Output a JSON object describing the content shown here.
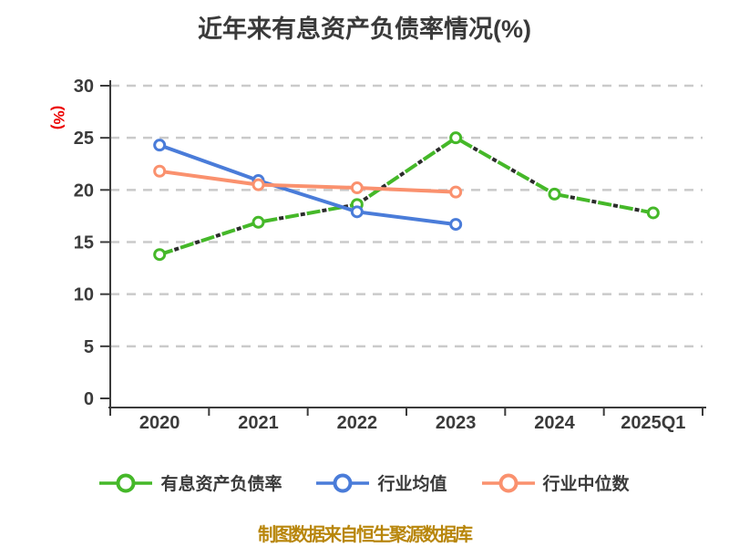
{
  "title": "近年来有息资产负债率情况(%)",
  "footer": "制图数据来自恒生聚源数据库",
  "colors": {
    "title": "#3a3a3a",
    "axis": "#3b3b3b",
    "grid": "#cacaca",
    "ylabel": "#ec0000",
    "footer": "#b8860b",
    "dash_underlay": "#2b2b2b",
    "marker_fill": "#ffffff"
  },
  "chart_data": {
    "type": "line",
    "title": "近年来有息资产负债率情况(%)",
    "categories": [
      "2020",
      "2021",
      "2022",
      "2023",
      "2024",
      "2025Q1"
    ],
    "series": [
      {
        "key": "interest-bearing-debt-ratio",
        "name": "有息资产负债率",
        "color": "#45b829",
        "style": "dashed",
        "values": [
          13.8,
          16.9,
          18.6,
          25.0,
          19.6,
          17.8
        ]
      },
      {
        "key": "industry-mean",
        "name": "行业均值",
        "color": "#4a7cd9",
        "style": "solid",
        "values": [
          24.3,
          20.9,
          17.9,
          16.7,
          null,
          null
        ]
      },
      {
        "key": "industry-median",
        "name": "行业中位数",
        "color": "#fa916e",
        "style": "solid",
        "values": [
          21.8,
          20.5,
          20.2,
          19.8,
          null,
          null
        ]
      }
    ],
    "ylabel": "(%)",
    "xlabel": "",
    "ylim": [
      0,
      30
    ],
    "y_ticks": [
      0,
      5,
      10,
      15,
      20,
      25,
      30
    ],
    "grid": "horizontal-dashed",
    "legend_position": "bottom"
  }
}
